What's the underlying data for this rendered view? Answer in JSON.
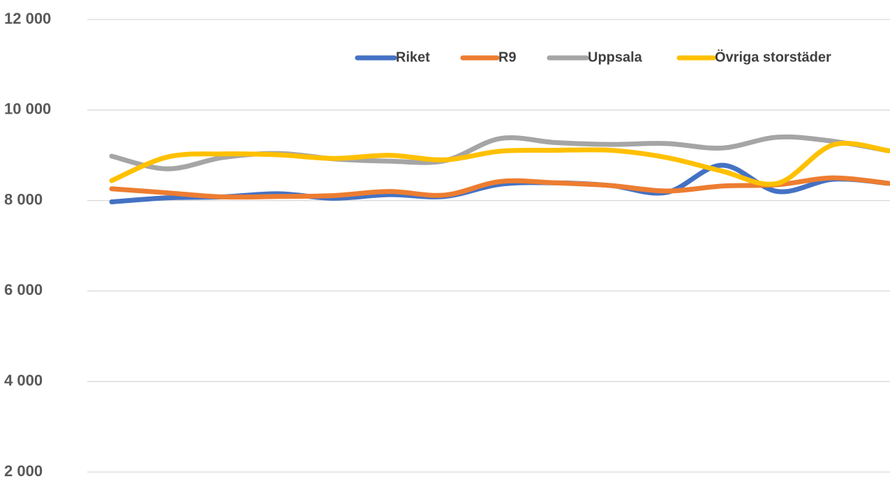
{
  "chart_data": {
    "type": "line",
    "categories": [
      null,
      null,
      null,
      null,
      null,
      null,
      null,
      null,
      null,
      null,
      null,
      null,
      null,
      null,
      null
    ],
    "series": [
      {
        "name": "Riket",
        "color": "#4472c4",
        "values": [
          7970,
          8060,
          8080,
          8150,
          8050,
          8130,
          8090,
          8360,
          8390,
          8330,
          8180,
          8780,
          8200,
          8470,
          8380
        ]
      },
      {
        "name": "R9",
        "color": "#ed7d31",
        "values": [
          8260,
          8170,
          8080,
          8090,
          8110,
          8200,
          8120,
          8420,
          8390,
          8330,
          8210,
          8320,
          8350,
          8500,
          8380
        ]
      },
      {
        "name": "Uppsala",
        "color": "#a5a5a5",
        "values": [
          8980,
          8700,
          8950,
          9040,
          8920,
          8870,
          8880,
          9370,
          9280,
          9240,
          9260,
          9160,
          9400,
          9310,
          9100
        ]
      },
      {
        "name": "Övriga storstäder",
        "color": "#ffc000",
        "values": [
          8440,
          8960,
          9030,
          9010,
          8930,
          9000,
          8900,
          9090,
          9110,
          9110,
          8950,
          8650,
          8380,
          9230,
          9100
        ]
      }
    ],
    "ylim": [
      2000,
      12000
    ],
    "yticks": [
      {
        "value": 2000,
        "label": "2 000"
      },
      {
        "value": 4000,
        "label": "4 000"
      },
      {
        "value": 6000,
        "label": "6 000"
      },
      {
        "value": 8000,
        "label": "8 000"
      },
      {
        "value": 10000,
        "label": "10 000"
      },
      {
        "value": 12000,
        "label": "12 000"
      }
    ],
    "grid": true,
    "legend": "top"
  }
}
